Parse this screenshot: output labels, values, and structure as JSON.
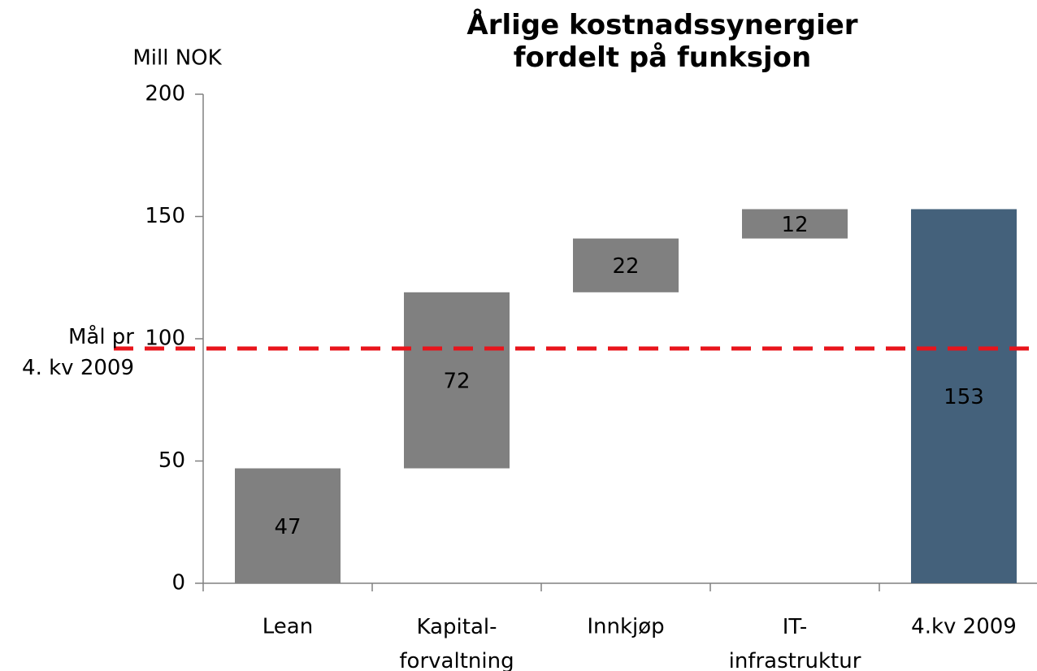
{
  "chart_data": {
    "type": "waterfall",
    "title": "Årlige kostnadssynergier\nfordelt på funksjon",
    "y_label": "Mill NOK",
    "categories": [
      "Lean",
      "Kapital-\nforvaltning",
      "Innkjøp",
      "IT-\ninfrastruktur",
      "4.kv 2009"
    ],
    "values": [
      47,
      72,
      22,
      12,
      153
    ],
    "is_total": [
      false,
      false,
      false,
      false,
      true
    ],
    "color": "#808080",
    "total_color": "#44617b",
    "ylim": [
      0,
      200
    ],
    "yticks": [
      0,
      50,
      100,
      150,
      200
    ],
    "target": {
      "value": 96,
      "label": "Mål pr\n4. kv 2009",
      "color": "#e8141b"
    }
  }
}
